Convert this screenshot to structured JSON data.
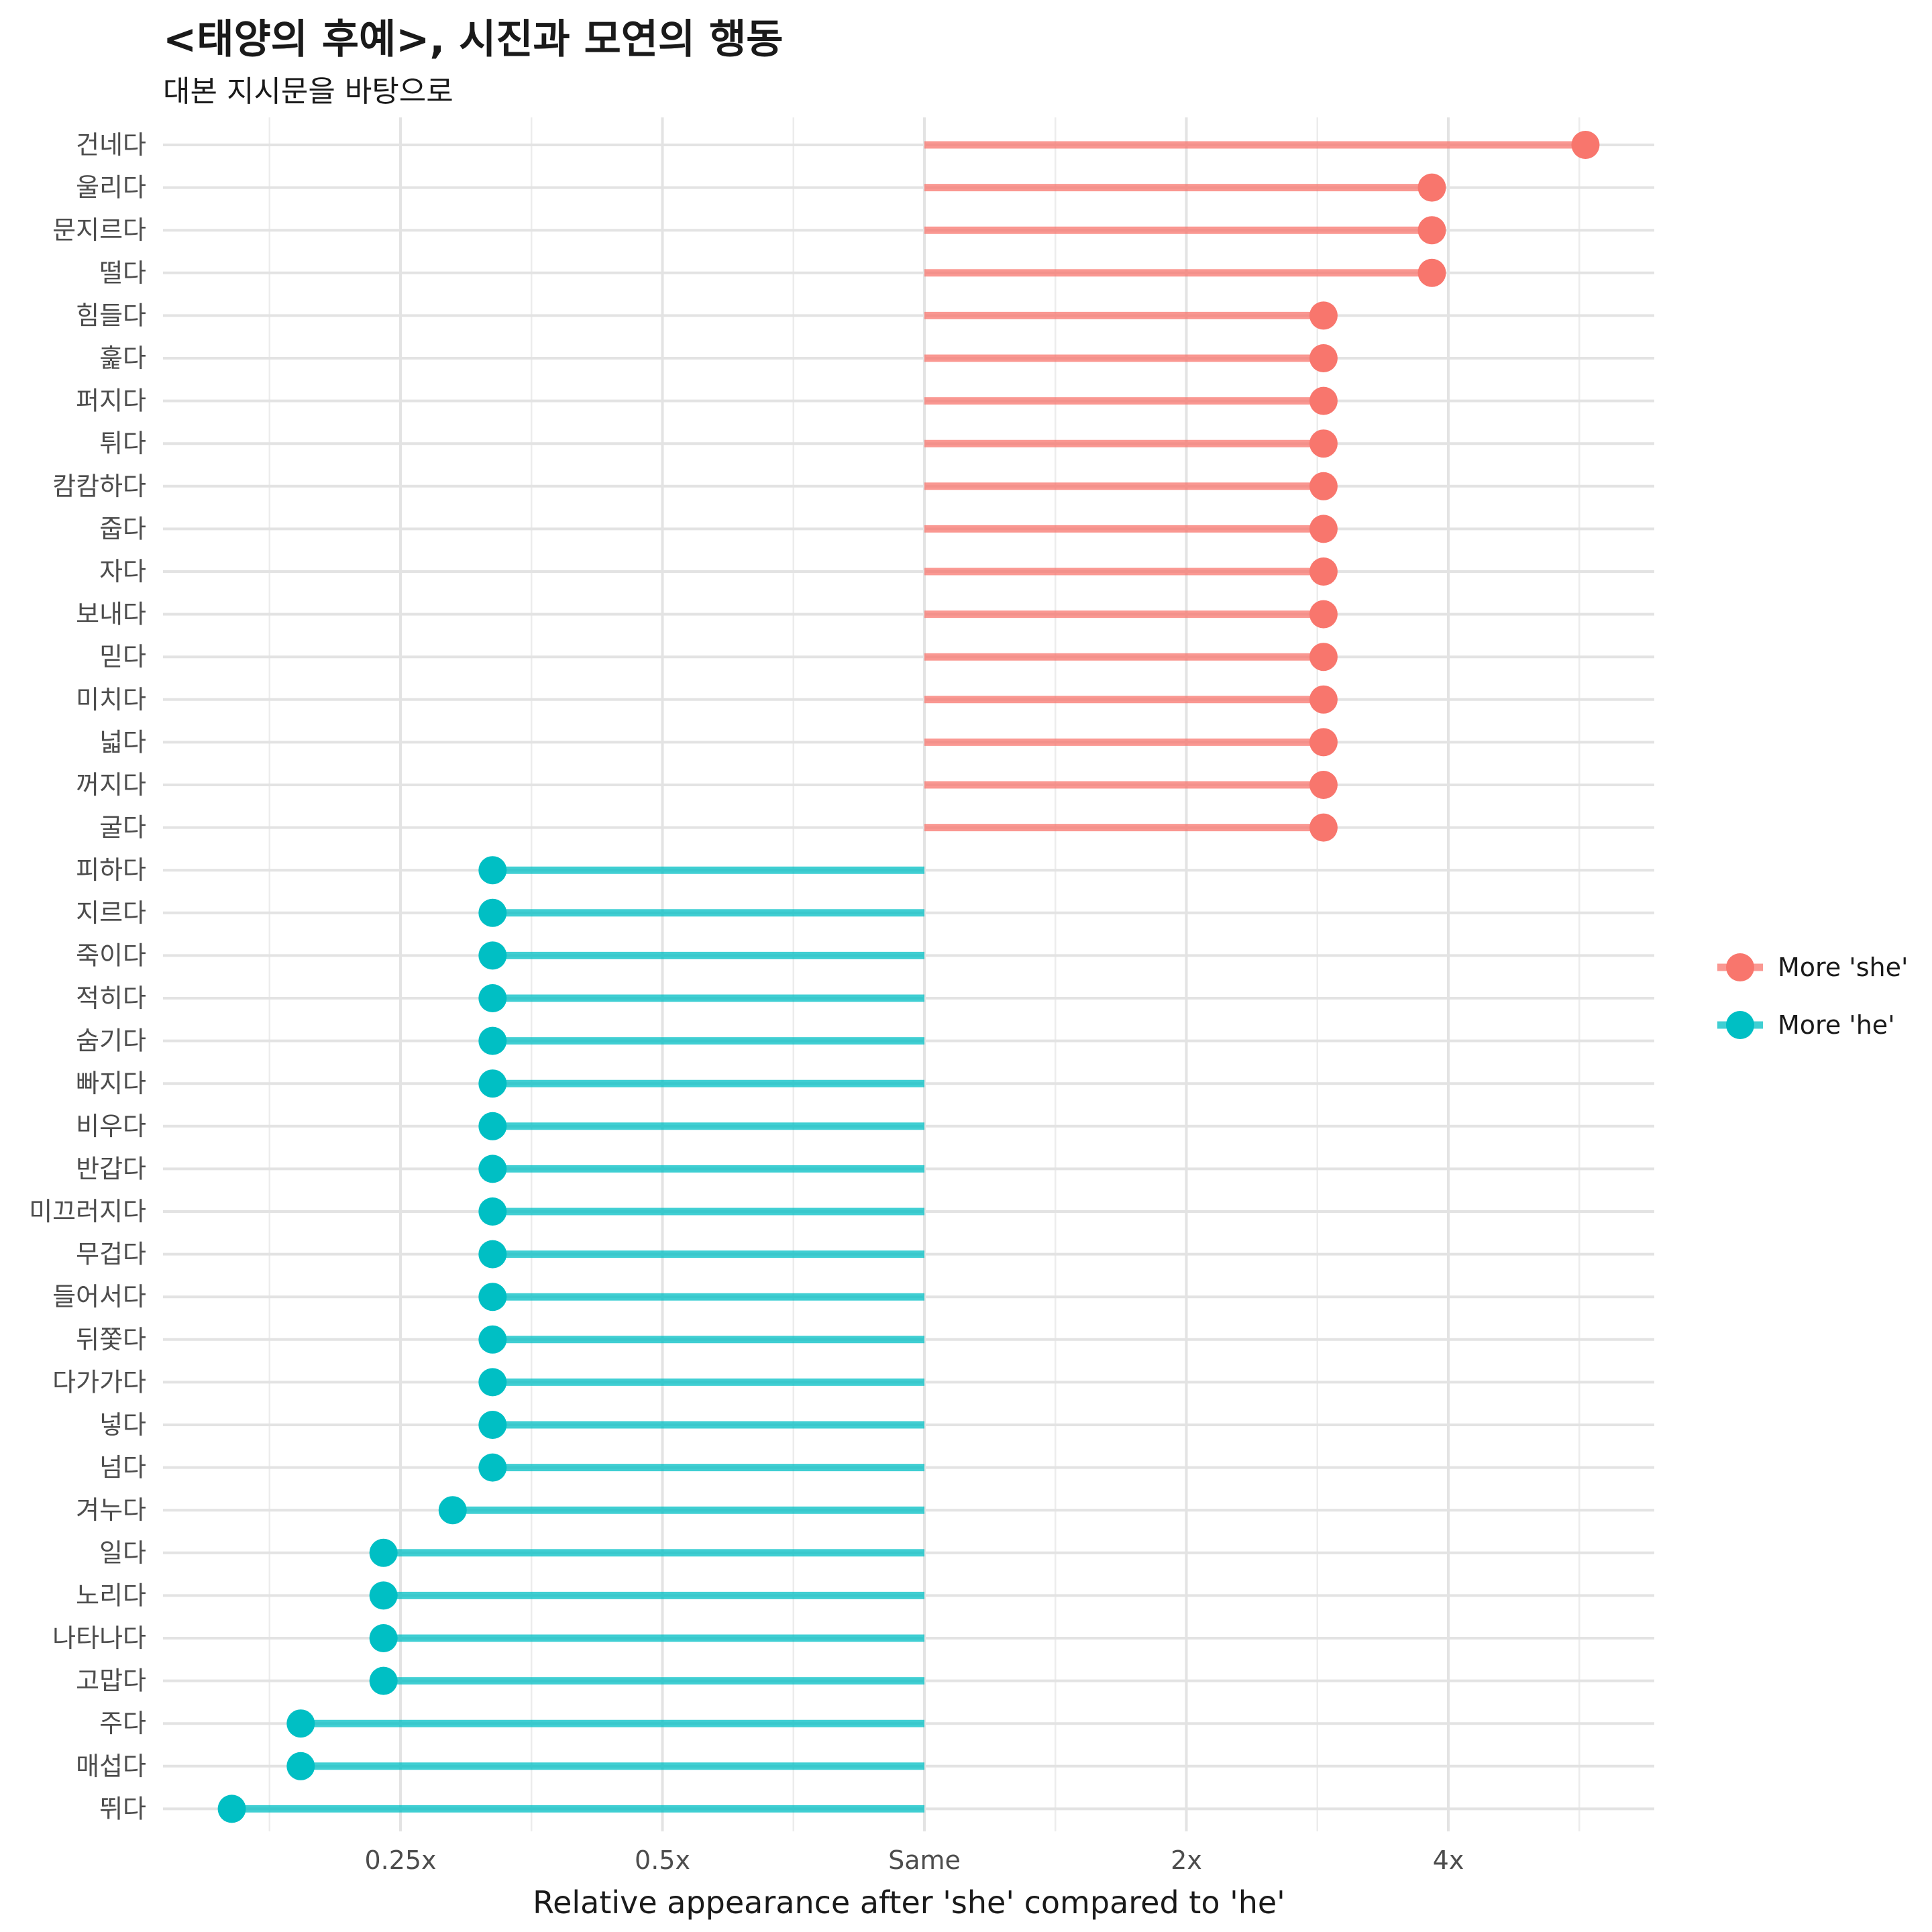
{
  "chart_data": {
    "type": "lollipop",
    "title": "<태양의 후예>, 시진과 모연의 행동",
    "subtitle": "대본 지시문을 바탕으로",
    "xlabel": "Relative appearance after 'she' compared to 'he'",
    "ylabel": "",
    "x_scale": "log2",
    "xlim": [
      0.125,
      7
    ],
    "x_ticks": [
      {
        "value": 0.25,
        "label": "0.25x"
      },
      {
        "value": 0.5,
        "label": "0.5x"
      },
      {
        "value": 1,
        "label": "Same"
      },
      {
        "value": 2,
        "label": "2x"
      },
      {
        "value": 4,
        "label": "4x"
      }
    ],
    "baseline": 1,
    "grid": true,
    "legend": {
      "position": "right",
      "items": [
        {
          "label": "More 'she'",
          "color": "#F8766D"
        },
        {
          "label": "More 'he'",
          "color": "#00BFC4"
        }
      ]
    },
    "colors": {
      "she": "#F8766D",
      "he": "#00BFC4"
    },
    "categories": [
      "건네다",
      "울리다",
      "문지르다",
      "떨다",
      "힘들다",
      "훑다",
      "퍼지다",
      "튀다",
      "캄캄하다",
      "줍다",
      "자다",
      "보내다",
      "믿다",
      "미치다",
      "넓다",
      "꺼지다",
      "굴다",
      "피하다",
      "지르다",
      "죽이다",
      "적히다",
      "숨기다",
      "빠지다",
      "비우다",
      "반갑다",
      "미끄러지다",
      "무겁다",
      "들어서다",
      "뒤쫓다",
      "다가가다",
      "넣다",
      "넘다",
      "겨누다",
      "일다",
      "노리다",
      "나타나다",
      "고맙다",
      "주다",
      "매섭다",
      "뛰다"
    ],
    "values": [
      5.75,
      3.83,
      3.83,
      3.83,
      2.875,
      2.875,
      2.875,
      2.875,
      2.875,
      2.875,
      2.875,
      2.875,
      2.875,
      2.875,
      2.875,
      2.875,
      2.875,
      0.319,
      0.319,
      0.319,
      0.319,
      0.319,
      0.319,
      0.319,
      0.319,
      0.319,
      0.319,
      0.319,
      0.319,
      0.319,
      0.319,
      0.319,
      0.287,
      0.239,
      0.239,
      0.239,
      0.239,
      0.192,
      0.192,
      0.16
    ],
    "groups": [
      "she",
      "she",
      "she",
      "she",
      "she",
      "she",
      "she",
      "she",
      "she",
      "she",
      "she",
      "she",
      "she",
      "she",
      "she",
      "she",
      "she",
      "he",
      "he",
      "he",
      "he",
      "he",
      "he",
      "he",
      "he",
      "he",
      "he",
      "he",
      "he",
      "he",
      "he",
      "he",
      "he",
      "he",
      "he",
      "he",
      "he",
      "he",
      "he",
      "he"
    ]
  }
}
